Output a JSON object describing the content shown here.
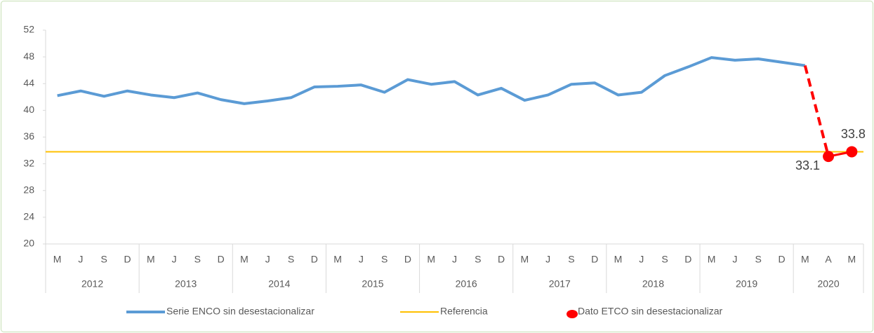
{
  "chart_data": {
    "type": "line",
    "categories": [
      "M",
      "J",
      "S",
      "D",
      "M",
      "J",
      "S",
      "D",
      "M",
      "J",
      "S",
      "D",
      "M",
      "J",
      "S",
      "D",
      "M",
      "J",
      "S",
      "D",
      "M",
      "J",
      "S",
      "D",
      "M",
      "J",
      "S",
      "D",
      "M",
      "J",
      "S",
      "D",
      "M",
      "A",
      "M"
    ],
    "groups": [
      {
        "label": "2012",
        "span": 4
      },
      {
        "label": "2013",
        "span": 4
      },
      {
        "label": "2014",
        "span": 4
      },
      {
        "label": "2015",
        "span": 4
      },
      {
        "label": "2016",
        "span": 4
      },
      {
        "label": "2017",
        "span": 4
      },
      {
        "label": "2018",
        "span": 4
      },
      {
        "label": "2019",
        "span": 4
      },
      {
        "label": "2020",
        "span": 3
      }
    ],
    "series": [
      {
        "name": "Serie ENCO sin desestacionalizar",
        "color": "#5b9bd5",
        "values": [
          42.2,
          42.9,
          42.1,
          42.9,
          42.3,
          41.9,
          42.6,
          41.6,
          41.0,
          41.4,
          41.9,
          43.5,
          43.6,
          43.8,
          42.7,
          44.6,
          43.9,
          44.3,
          42.3,
          43.3,
          41.5,
          42.3,
          43.9,
          44.1,
          42.3,
          42.7,
          45.2,
          46.5,
          47.9,
          47.5,
          47.7,
          47.2,
          46.7,
          null,
          null
        ]
      },
      {
        "name": "Referencia",
        "color": "#ffc000",
        "value": 33.8
      },
      {
        "name": "Dato ETCO sin desestacionalizar",
        "color": "#ff0000",
        "values": [
          null,
          null,
          null,
          null,
          null,
          null,
          null,
          null,
          null,
          null,
          null,
          null,
          null,
          null,
          null,
          null,
          null,
          null,
          null,
          null,
          null,
          null,
          null,
          null,
          null,
          null,
          null,
          null,
          null,
          null,
          null,
          null,
          46.7,
          33.1,
          33.8
        ],
        "labelled": [
          33,
          34
        ]
      }
    ],
    "ylim": [
      20,
      52
    ],
    "yticks": [
      20,
      24,
      28,
      32,
      36,
      40,
      44,
      48,
      52
    ],
    "grid": false
  }
}
